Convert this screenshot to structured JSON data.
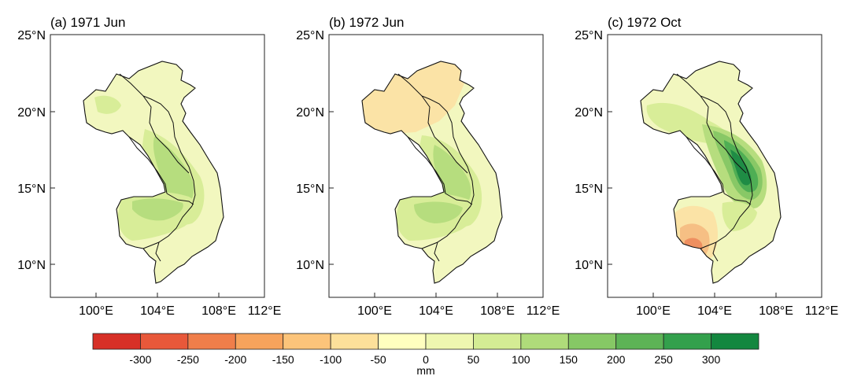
{
  "panels": [
    {
      "title": "(a) 1971 Jun"
    },
    {
      "title": "(b) 1972 Jun"
    },
    {
      "title": "(c) 1972 Oct"
    }
  ],
  "axes": {
    "y_ticks": [
      "25°N",
      "20°N",
      "15°N",
      "10°N"
    ],
    "x_ticks": [
      "100°E",
      "104°E",
      "108°E",
      "112°E"
    ]
  },
  "colorbar": {
    "unit": "mm",
    "tick_labels": [
      "-300",
      "-250",
      "-200",
      "-150",
      "-100",
      "-50",
      "0",
      "50",
      "100",
      "150",
      "200",
      "250",
      "300"
    ],
    "colors": [
      "#d73027",
      "#e8583a",
      "#f07e4a",
      "#f7a35c",
      "#fcc47a",
      "#fde09a",
      "#ffffbf",
      "#eef7b0",
      "#d4ec94",
      "#afdb7a",
      "#86c865",
      "#5db356",
      "#33a04c",
      "#13873f"
    ]
  },
  "map_colors": {
    "land_light": "#f2f7bf",
    "dry_1": "#fbe3a6",
    "dry_2": "#f6bf84",
    "dry_3": "#ee8f60",
    "wet_1": "#d8ed98",
    "wet_2": "#b6dd7e",
    "wet_3": "#88c866",
    "wet_4": "#4fae54",
    "wet_5": "#1f8c45"
  }
}
